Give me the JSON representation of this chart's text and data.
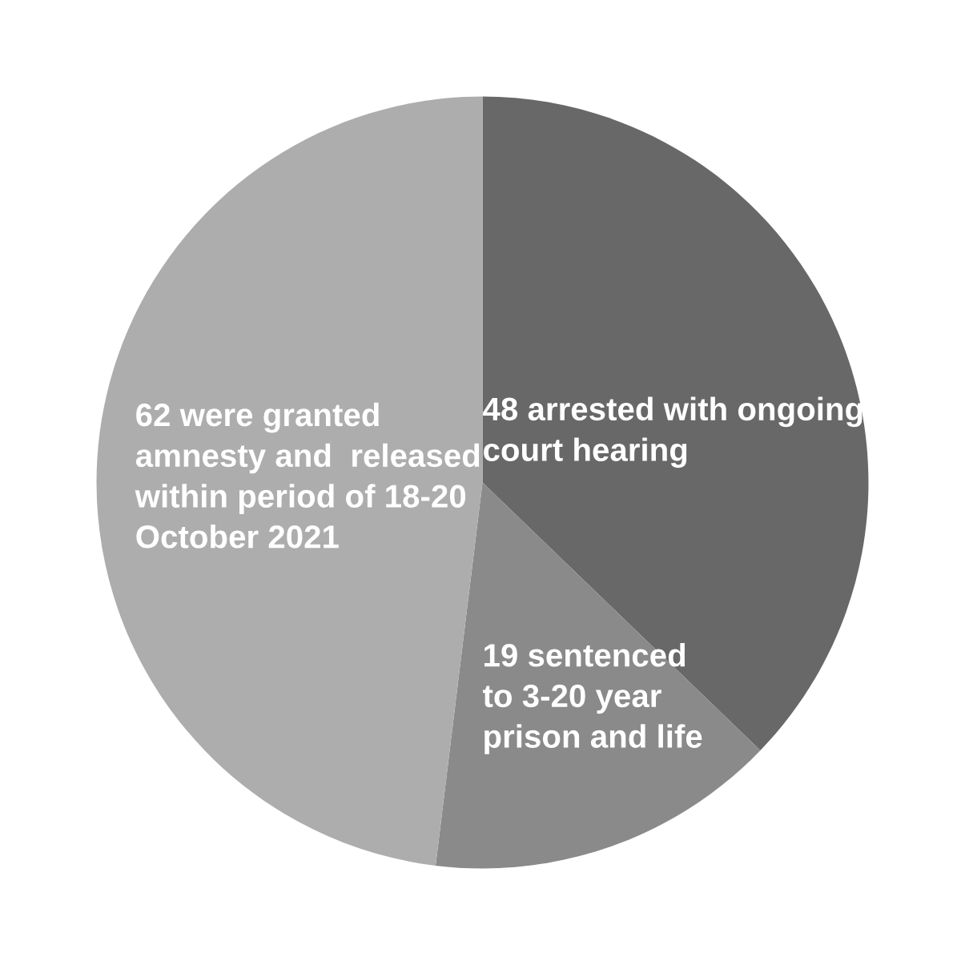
{
  "chart_data": {
    "type": "pie",
    "categories": [
      "48 arrested with ongoing\ncourt hearing",
      "19 sentenced\nto 3-20 year\nprison and life",
      "62 were granted\namnesty and  released\nwithin period of 18-20\nOctober 2021"
    ],
    "values": [
      48,
      19,
      62
    ],
    "colors": [
      "#686868",
      "#8a8a8a",
      "#adadad"
    ]
  }
}
